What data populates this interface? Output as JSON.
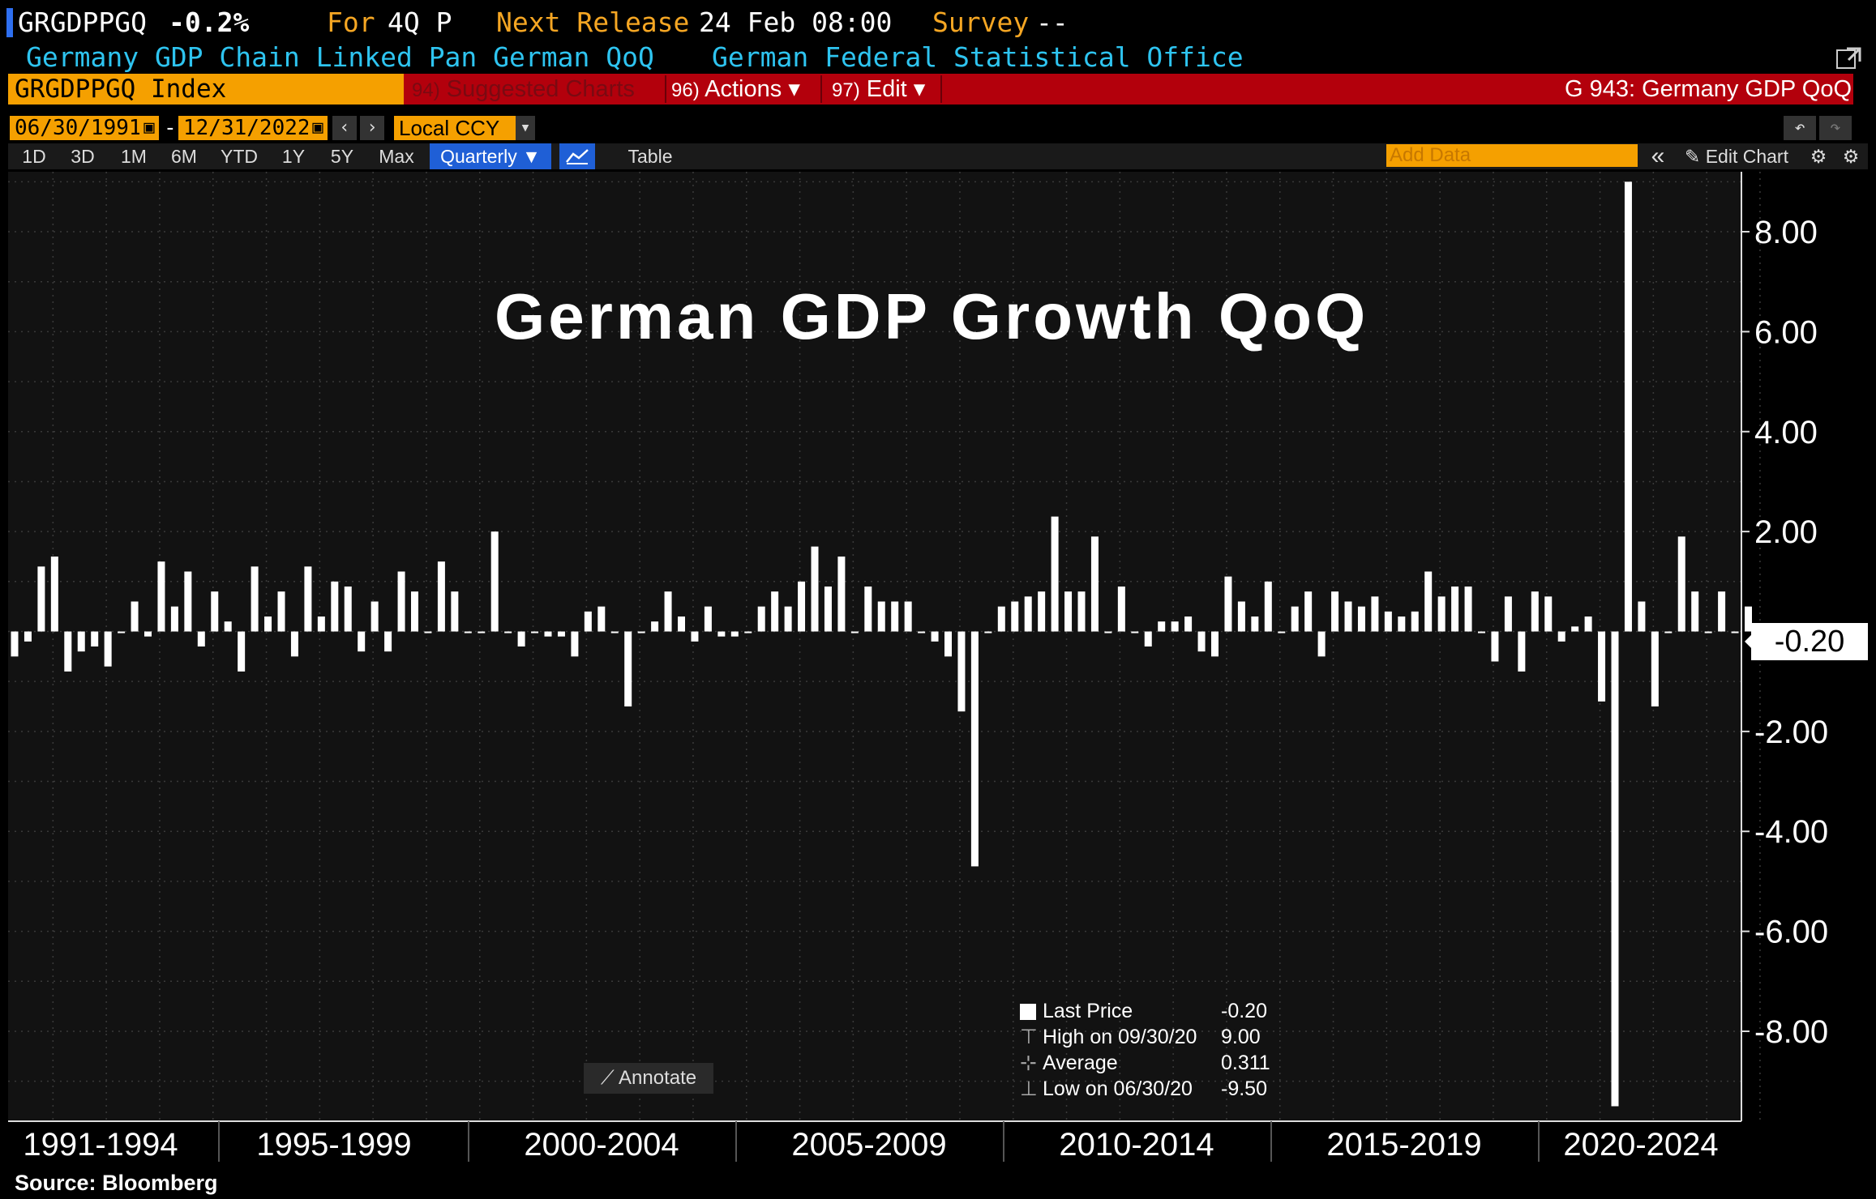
{
  "header": {
    "ticker": "GRGDPPGQ",
    "change": "-0.2%",
    "period_label": "For",
    "period": "4Q P",
    "next_release_label": "Next Release",
    "next_release": "24 Feb 08:00",
    "survey_label": "Survey",
    "survey": "--",
    "description": "Germany GDP Chain Linked Pan German QoQ",
    "source_org": "German Federal Statistical Office"
  },
  "menubar": {
    "index": "GRGDPPGQ Index",
    "suggested_num": "94)",
    "suggested": "Suggested Charts",
    "actions_num": "96)",
    "actions": "Actions ▾",
    "edit_num": "97)",
    "edit": "Edit ▾",
    "chart_id": "G 943: Germany GDP QoQ"
  },
  "controls": {
    "start_date": "06/30/1991",
    "end_date": "12/31/2022",
    "dash": "-",
    "currency": "Local CCY",
    "ranges": [
      "1D",
      "3D",
      "1M",
      "6M",
      "YTD",
      "1Y",
      "5Y",
      "Max"
    ],
    "frequency": "Quarterly ▼",
    "table": "Table",
    "add_data_placeholder": "Add Data",
    "edit_chart": "Edit Chart"
  },
  "legend": {
    "last_price_label": "Last Price",
    "last_price": "-0.20",
    "high_label": "High on 09/30/20",
    "high": "9.00",
    "average_label": "Average",
    "average": "0.311",
    "low_label": "Low on 06/30/20",
    "low": "-9.50"
  },
  "annotate": "Annotate",
  "source": "Source: Bloomberg",
  "chart_data": {
    "type": "bar",
    "title": "German GDP Growth QoQ",
    "ylim": [
      -9.8,
      9.2
    ],
    "yticks": [
      "8.00",
      "6.00",
      "4.00",
      "2.00",
      "-2.00",
      "-4.00",
      "-6.00",
      "-8.00"
    ],
    "last_value_label": "-0.20",
    "xlabels": [
      "1991-1994",
      "1995-1999",
      "2000-2004",
      "2005-2009",
      "2010-2014",
      "2015-2019",
      "2020-2024"
    ],
    "start_quarter": "1991 Q2",
    "values": [
      -0.5,
      -0.2,
      1.3,
      1.5,
      -0.8,
      -0.4,
      -0.3,
      -0.7,
      0.0,
      0.6,
      -0.1,
      1.4,
      0.5,
      1.2,
      -0.3,
      0.8,
      0.2,
      -0.8,
      1.3,
      0.3,
      0.8,
      -0.5,
      1.3,
      0.3,
      1.0,
      0.9,
      -0.4,
      0.6,
      -0.4,
      1.2,
      0.8,
      0.0,
      1.4,
      0.8,
      0.0,
      0.0,
      2.0,
      0.0,
      -0.3,
      0.0,
      -0.1,
      -0.1,
      -0.5,
      0.4,
      0.5,
      0.0,
      -1.5,
      0.0,
      0.2,
      0.8,
      0.3,
      -0.2,
      0.5,
      -0.1,
      -0.1,
      0.0,
      0.5,
      0.8,
      0.5,
      1.0,
      1.7,
      0.9,
      1.5,
      0.0,
      0.9,
      0.6,
      0.6,
      0.6,
      0.0,
      -0.2,
      -0.5,
      -1.6,
      -4.7,
      0.0,
      0.5,
      0.6,
      0.7,
      0.8,
      2.3,
      0.8,
      0.8,
      1.9,
      0.0,
      0.9,
      0.0,
      -0.3,
      0.2,
      0.2,
      0.3,
      -0.4,
      -0.5,
      1.1,
      0.6,
      0.3,
      1.0,
      0.0,
      0.5,
      0.8,
      -0.5,
      0.8,
      0.6,
      0.5,
      0.7,
      0.4,
      0.3,
      0.4,
      1.2,
      0.7,
      0.9,
      0.9,
      0.0,
      -0.6,
      0.7,
      -0.8,
      0.8,
      0.7,
      -0.2,
      0.1,
      0.3,
      -1.4,
      -9.5,
      9.0,
      0.6,
      -1.5,
      0.0,
      1.9,
      0.8,
      0.0,
      0.8,
      0.0,
      0.5,
      -0.2
    ]
  }
}
